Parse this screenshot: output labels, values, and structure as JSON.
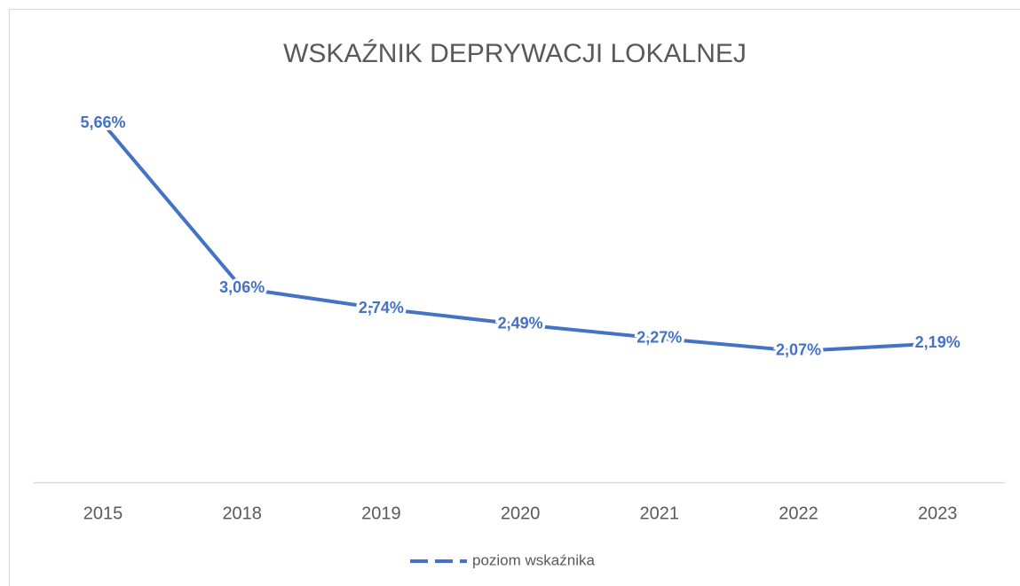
{
  "chart_data": {
    "type": "line",
    "title": "WSKAŹNIK DEPRYWACJI LOKALNEJ",
    "categories": [
      "2015",
      "2018",
      "2019",
      "2020",
      "2021",
      "2022",
      "2023"
    ],
    "series": [
      {
        "name": "poziom wskaźnika",
        "color": "#4472c4",
        "values": [
          5.66,
          3.06,
          2.74,
          2.49,
          2.27,
          2.07,
          2.19
        ],
        "value_labels": [
          "5,66%",
          "3,06%",
          "2,74%",
          "2,49%",
          "2,27%",
          "2,07%",
          "2,19%"
        ]
      }
    ],
    "ylim": [
      0,
      6
    ],
    "legend": "bottom"
  }
}
